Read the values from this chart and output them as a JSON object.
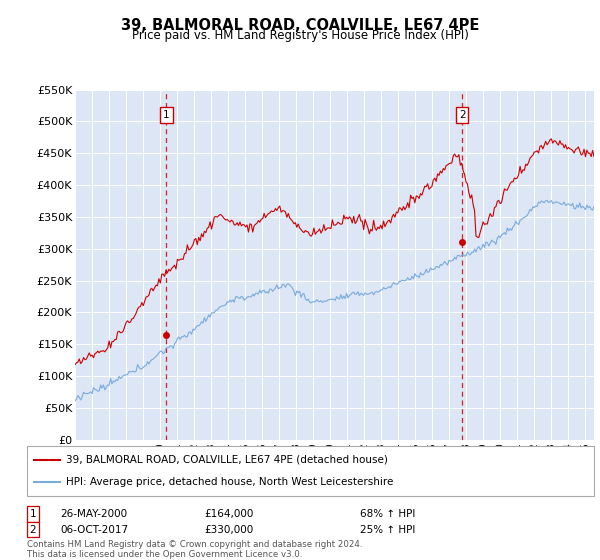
{
  "title": "39, BALMORAL ROAD, COALVILLE, LE67 4PE",
  "subtitle": "Price paid vs. HM Land Registry's House Price Index (HPI)",
  "bg_color": "#dce6f5",
  "red_line_color": "#cc0000",
  "blue_line_color": "#7aabdc",
  "dashed_line_color": "#cc0000",
  "marker1_year": 2000.375,
  "marker1_price": 164000,
  "marker1_date": "26-MAY-2000",
  "marker1_pct": "68% ↑ HPI",
  "marker2_year": 2017.75,
  "marker2_price": 310000,
  "marker2_date": "06-OCT-2017",
  "marker2_pct": "25% ↑ HPI",
  "legend_line1": "39, BALMORAL ROAD, COALVILLE, LE67 4PE (detached house)",
  "legend_line2": "HPI: Average price, detached house, North West Leicestershire",
  "footnote": "Contains HM Land Registry data © Crown copyright and database right 2024.\nThis data is licensed under the Open Government Licence v3.0.",
  "ylabel_ticks": [
    "£0",
    "£50K",
    "£100K",
    "£150K",
    "£200K",
    "£250K",
    "£300K",
    "£350K",
    "£400K",
    "£450K",
    "£500K",
    "£550K"
  ],
  "ylabel_values": [
    0,
    50000,
    100000,
    150000,
    200000,
    250000,
    300000,
    350000,
    400000,
    450000,
    500000,
    550000
  ],
  "xstart_year": 1995,
  "xend_year": 2025
}
